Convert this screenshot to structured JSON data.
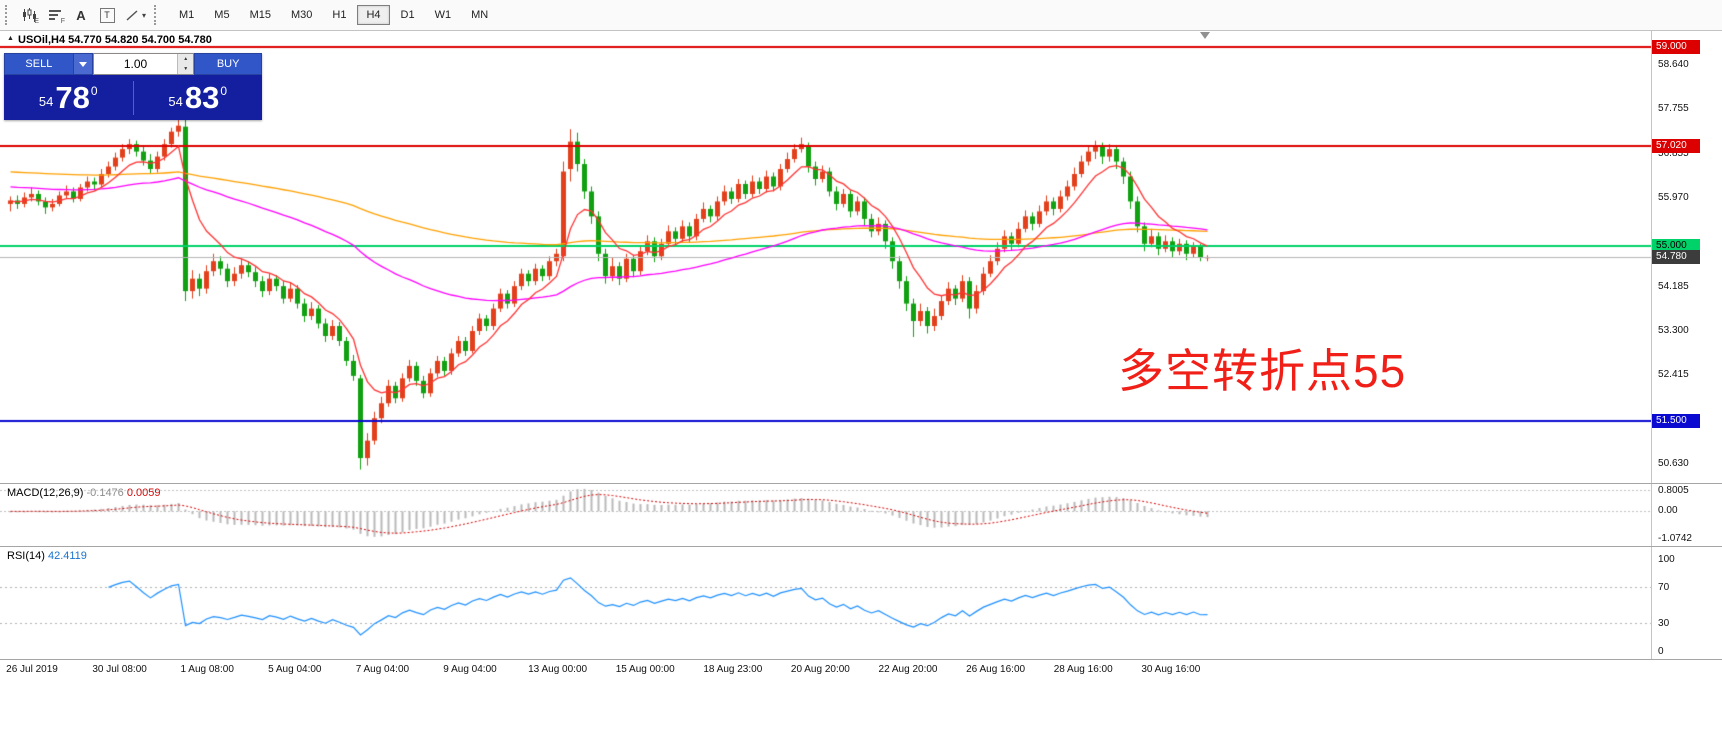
{
  "toolbar": {
    "tool_icons": [
      {
        "name": "chart-window-icon",
        "sub": "E"
      },
      {
        "name": "profiles-icon",
        "sub": "F"
      },
      {
        "name": "text-tool-icon",
        "glyph": "A"
      },
      {
        "name": "text-label-tool-icon",
        "glyph": "T"
      },
      {
        "name": "line-tools-icon"
      }
    ],
    "timeframes": [
      "M1",
      "M5",
      "M15",
      "M30",
      "H1",
      "H4",
      "D1",
      "W1",
      "MN"
    ],
    "active_timeframe": "H4"
  },
  "chart": {
    "title": "USOil,H4 54.770 54.820 54.700 54.780",
    "annotation": "多空转折点55"
  },
  "trade_panel": {
    "sell_label": "SELL",
    "buy_label": "BUY",
    "volume": "1.00",
    "sell_price": {
      "prefix": "54",
      "main": "78",
      "sup": "0"
    },
    "buy_price": {
      "prefix": "54",
      "main": "83",
      "sup": "0"
    }
  },
  "chart_data": {
    "type": "candlestick",
    "symbol": "USOil",
    "timeframe": "H4",
    "y_range": [
      50.25,
      59.32
    ],
    "candle_colors": {
      "up": "#e2401c",
      "down": "#11a011"
    },
    "levels": [
      {
        "price": 59.0,
        "label": "59.000",
        "color": "#dd0000",
        "text": "#ffffff",
        "width": 2
      },
      {
        "price": 57.02,
        "label": "57.020",
        "color": "#dd0000",
        "text": "#ffffff",
        "width": 2
      },
      {
        "price": 55.0,
        "label": "55.000",
        "color": "#00d26a",
        "text": "#000000",
        "width": 2
      },
      {
        "price": 51.5,
        "label": "51.500",
        "color": "#0a0ad0",
        "text": "#ffffff",
        "width": 2
      }
    ],
    "current_price": {
      "price": 54.78,
      "label": "54.780",
      "line_color": "#b4b4b4",
      "badge_bg": "#3c3c3c"
    },
    "axis_ticks": [
      {
        "value": 58.64,
        "label": "58.640"
      },
      {
        "value": 57.755,
        "label": "57.755"
      },
      {
        "value": 56.855,
        "label": "56.855"
      },
      {
        "value": 55.97,
        "label": "55.970"
      },
      {
        "value": 54.185,
        "label": "54.185"
      },
      {
        "value": 53.3,
        "label": "53.300"
      },
      {
        "value": 52.415,
        "label": "52.415"
      },
      {
        "value": 50.63,
        "label": "50.630"
      }
    ],
    "time_labels": [
      "26 Jul 2019",
      "30 Jul 08:00",
      "1 Aug 08:00",
      "5 Aug 04:00",
      "7 Aug 04:00",
      "9 Aug 04:00",
      "13 Aug 00:00",
      "15 Aug 00:00",
      "18 Aug 23:00",
      "20 Aug 20:00",
      "22 Aug 20:00",
      "26 Aug 16:00",
      "28 Aug 16:00",
      "30 Aug 16:00"
    ],
    "moving_averages": [
      {
        "name": "ma-slow",
        "color": "#ffa000",
        "alpha": 0.012,
        "seed": 56.5
      },
      {
        "name": "ma-mid",
        "color": "#ff00ff",
        "alpha": 0.03,
        "seed": 56.2
      },
      {
        "name": "ma-fast",
        "color": "#ff3333",
        "alpha": 0.22,
        "seed": 55.9
      }
    ],
    "indicators": {
      "macd": {
        "name": "MACD(12,26,9)",
        "value_main": "-0.1476",
        "value_signal": "0.0059",
        "axis_max": "0.8005",
        "axis_zero": "0.00",
        "axis_min": "-1.0742",
        "fast": 12,
        "slow": 26,
        "signal": 9,
        "histogram_color": "#b9b9b9",
        "signal_color": "#d40000"
      },
      "rsi": {
        "name": "RSI(14)",
        "value": "42.4119",
        "axis": [
          "100",
          "70",
          "30",
          "0"
        ],
        "period": 14,
        "levels": [
          70,
          30
        ],
        "line_color": "#1e90ff"
      }
    },
    "ohlc": [
      [
        55.85,
        56.0,
        55.7,
        55.92
      ],
      [
        55.92,
        56.02,
        55.75,
        55.85
      ],
      [
        55.85,
        56.08,
        55.78,
        55.98
      ],
      [
        55.98,
        56.18,
        55.9,
        56.05
      ],
      [
        56.05,
        56.12,
        55.82,
        55.9
      ],
      [
        55.9,
        55.98,
        55.65,
        55.78
      ],
      [
        55.78,
        55.95,
        55.7,
        55.85
      ],
      [
        55.85,
        56.1,
        55.8,
        56.02
      ],
      [
        56.02,
        56.22,
        55.95,
        56.1
      ],
      [
        56.1,
        56.18,
        55.88,
        55.95
      ],
      [
        55.95,
        56.25,
        55.9,
        56.18
      ],
      [
        56.18,
        56.4,
        56.1,
        56.3
      ],
      [
        56.3,
        56.38,
        56.12,
        56.24
      ],
      [
        56.24,
        56.55,
        56.18,
        56.45
      ],
      [
        56.45,
        56.7,
        56.38,
        56.6
      ],
      [
        56.6,
        56.88,
        56.52,
        56.78
      ],
      [
        56.78,
        57.05,
        56.7,
        56.95
      ],
      [
        56.95,
        57.15,
        56.85,
        57.05
      ],
      [
        57.05,
        57.12,
        56.8,
        56.9
      ],
      [
        56.9,
        57.0,
        56.62,
        56.72
      ],
      [
        56.72,
        56.85,
        56.45,
        56.55
      ],
      [
        56.55,
        56.9,
        56.48,
        56.8
      ],
      [
        56.8,
        57.15,
        56.72,
        57.05
      ],
      [
        57.05,
        57.38,
        56.98,
        57.3
      ],
      [
        57.3,
        57.55,
        57.2,
        57.42
      ],
      [
        57.4,
        57.58,
        53.9,
        54.1
      ],
      [
        54.1,
        54.52,
        53.95,
        54.35
      ],
      [
        54.35,
        54.45,
        54.0,
        54.15
      ],
      [
        54.15,
        54.62,
        54.05,
        54.5
      ],
      [
        54.5,
        54.85,
        54.4,
        54.7
      ],
      [
        54.7,
        54.8,
        54.42,
        54.55
      ],
      [
        54.55,
        54.65,
        54.18,
        54.3
      ],
      [
        54.3,
        54.58,
        54.2,
        54.45
      ],
      [
        54.45,
        54.75,
        54.35,
        54.62
      ],
      [
        54.62,
        54.7,
        54.38,
        54.48
      ],
      [
        54.48,
        54.58,
        54.18,
        54.3
      ],
      [
        54.3,
        54.4,
        53.98,
        54.1
      ],
      [
        54.1,
        54.45,
        54.02,
        54.35
      ],
      [
        54.35,
        54.42,
        54.1,
        54.2
      ],
      [
        54.2,
        54.3,
        53.85,
        53.95
      ],
      [
        53.95,
        54.28,
        53.88,
        54.15
      ],
      [
        54.15,
        54.22,
        53.75,
        53.85
      ],
      [
        53.85,
        53.95,
        53.48,
        53.6
      ],
      [
        53.6,
        53.88,
        53.52,
        53.75
      ],
      [
        53.75,
        53.82,
        53.35,
        53.45
      ],
      [
        53.45,
        53.55,
        53.08,
        53.2
      ],
      [
        53.2,
        53.52,
        53.12,
        53.4
      ],
      [
        53.4,
        53.48,
        53.0,
        53.1
      ],
      [
        53.1,
        53.18,
        52.6,
        52.7
      ],
      [
        52.7,
        52.82,
        52.3,
        52.4
      ],
      [
        52.35,
        52.42,
        50.52,
        50.75
      ],
      [
        50.75,
        51.25,
        50.6,
        51.1
      ],
      [
        51.1,
        51.68,
        51.02,
        51.55
      ],
      [
        51.55,
        51.98,
        51.45,
        51.85
      ],
      [
        51.85,
        52.32,
        51.78,
        52.2
      ],
      [
        52.2,
        52.28,
        51.85,
        51.95
      ],
      [
        51.95,
        52.45,
        51.88,
        52.35
      ],
      [
        52.35,
        52.72,
        52.28,
        52.6
      ],
      [
        52.6,
        52.68,
        52.2,
        52.3
      ],
      [
        52.3,
        52.4,
        51.95,
        52.05
      ],
      [
        52.05,
        52.55,
        51.98,
        52.45
      ],
      [
        52.45,
        52.8,
        52.38,
        52.7
      ],
      [
        52.7,
        52.78,
        52.4,
        52.5
      ],
      [
        52.5,
        52.95,
        52.42,
        52.85
      ],
      [
        52.85,
        53.2,
        52.78,
        53.1
      ],
      [
        53.1,
        53.18,
        52.8,
        52.9
      ],
      [
        52.9,
        53.4,
        52.85,
        53.3
      ],
      [
        53.3,
        53.65,
        53.22,
        53.55
      ],
      [
        53.55,
        53.62,
        53.3,
        53.4
      ],
      [
        53.4,
        53.85,
        53.32,
        53.75
      ],
      [
        53.75,
        54.15,
        53.68,
        54.05
      ],
      [
        54.05,
        54.12,
        53.75,
        53.85
      ],
      [
        53.85,
        54.3,
        53.78,
        54.2
      ],
      [
        54.2,
        54.55,
        54.12,
        54.45
      ],
      [
        54.45,
        54.52,
        54.2,
        54.3
      ],
      [
        54.3,
        54.65,
        54.22,
        54.55
      ],
      [
        54.55,
        54.62,
        54.3,
        54.4
      ],
      [
        54.4,
        54.8,
        54.32,
        54.7
      ],
      [
        54.7,
        54.95,
        54.6,
        54.85
      ],
      [
        54.8,
        56.7,
        54.7,
        56.5
      ],
      [
        56.55,
        57.35,
        56.3,
        57.1
      ],
      [
        57.1,
        57.28,
        56.5,
        56.65
      ],
      [
        56.65,
        56.75,
        55.95,
        56.1
      ],
      [
        56.1,
        56.2,
        55.45,
        55.6
      ],
      [
        55.6,
        55.7,
        54.7,
        54.85
      ],
      [
        54.85,
        54.95,
        54.25,
        54.4
      ],
      [
        54.4,
        54.78,
        54.3,
        54.6
      ],
      [
        54.6,
        54.68,
        54.22,
        54.35
      ],
      [
        54.35,
        54.85,
        54.28,
        54.75
      ],
      [
        54.75,
        54.82,
        54.38,
        54.5
      ],
      [
        54.5,
        55.0,
        54.42,
        54.9
      ],
      [
        54.9,
        55.22,
        54.82,
        55.1
      ],
      [
        55.1,
        55.18,
        54.68,
        54.8
      ],
      [
        54.8,
        55.15,
        54.72,
        55.05
      ],
      [
        55.05,
        55.42,
        54.98,
        55.3
      ],
      [
        55.3,
        55.38,
        55.02,
        55.15
      ],
      [
        55.15,
        55.52,
        55.08,
        55.4
      ],
      [
        55.4,
        55.48,
        55.08,
        55.2
      ],
      [
        55.2,
        55.65,
        55.12,
        55.55
      ],
      [
        55.55,
        55.88,
        55.48,
        55.75
      ],
      [
        55.75,
        55.82,
        55.48,
        55.6
      ],
      [
        55.6,
        56.0,
        55.52,
        55.9
      ],
      [
        55.9,
        56.22,
        55.82,
        56.1
      ],
      [
        56.1,
        56.18,
        55.85,
        55.95
      ],
      [
        55.95,
        56.35,
        55.88,
        56.25
      ],
      [
        56.25,
        56.32,
        55.95,
        56.05
      ],
      [
        56.05,
        56.42,
        55.98,
        56.3
      ],
      [
        56.3,
        56.38,
        56.05,
        56.15
      ],
      [
        56.15,
        56.52,
        56.08,
        56.4
      ],
      [
        56.4,
        56.48,
        56.1,
        56.2
      ],
      [
        56.2,
        56.65,
        56.12,
        56.55
      ],
      [
        56.55,
        56.88,
        56.48,
        56.75
      ],
      [
        56.75,
        57.05,
        56.68,
        56.95
      ],
      [
        56.95,
        57.18,
        56.88,
        57.05
      ],
      [
        57.0,
        57.08,
        56.48,
        56.6
      ],
      [
        56.6,
        56.7,
        56.22,
        56.35
      ],
      [
        56.35,
        56.62,
        56.28,
        56.5
      ],
      [
        56.5,
        56.58,
        56.0,
        56.1
      ],
      [
        56.1,
        56.2,
        55.72,
        55.85
      ],
      [
        55.85,
        56.15,
        55.78,
        56.05
      ],
      [
        56.05,
        56.12,
        55.58,
        55.7
      ],
      [
        55.7,
        56.0,
        55.62,
        55.9
      ],
      [
        55.9,
        55.98,
        55.42,
        55.55
      ],
      [
        55.55,
        55.65,
        55.18,
        55.3
      ],
      [
        55.3,
        55.58,
        55.22,
        55.45
      ],
      [
        55.45,
        55.52,
        54.95,
        55.1
      ],
      [
        55.1,
        55.18,
        54.55,
        54.7
      ],
      [
        54.7,
        54.8,
        54.15,
        54.3
      ],
      [
        54.3,
        54.4,
        53.7,
        53.85
      ],
      [
        53.85,
        53.95,
        53.18,
        53.5
      ],
      [
        53.5,
        53.85,
        53.4,
        53.7
      ],
      [
        53.7,
        53.78,
        53.25,
        53.4
      ],
      [
        53.4,
        53.75,
        53.3,
        53.6
      ],
      [
        53.6,
        54.02,
        53.52,
        53.9
      ],
      [
        53.9,
        54.28,
        53.82,
        54.15
      ],
      [
        54.15,
        54.22,
        53.82,
        53.95
      ],
      [
        53.95,
        54.42,
        53.88,
        54.3
      ],
      [
        54.3,
        54.38,
        53.55,
        53.75
      ],
      [
        53.75,
        54.22,
        53.65,
        54.1
      ],
      [
        54.1,
        54.58,
        54.02,
        54.45
      ],
      [
        54.45,
        54.82,
        54.38,
        54.7
      ],
      [
        54.7,
        55.08,
        54.62,
        54.95
      ],
      [
        54.95,
        55.32,
        54.88,
        55.2
      ],
      [
        55.2,
        55.28,
        54.92,
        55.05
      ],
      [
        55.05,
        55.48,
        54.98,
        55.35
      ],
      [
        55.35,
        55.72,
        55.28,
        55.6
      ],
      [
        55.6,
        55.68,
        55.32,
        55.45
      ],
      [
        55.45,
        55.82,
        55.38,
        55.7
      ],
      [
        55.7,
        56.02,
        55.62,
        55.9
      ],
      [
        55.9,
        55.98,
        55.62,
        55.75
      ],
      [
        55.75,
        56.12,
        55.68,
        56.0
      ],
      [
        56.0,
        56.32,
        55.92,
        56.2
      ],
      [
        56.2,
        56.58,
        56.12,
        56.45
      ],
      [
        56.45,
        56.82,
        56.38,
        56.7
      ],
      [
        56.7,
        57.0,
        56.62,
        56.9
      ],
      [
        56.9,
        57.12,
        56.75,
        57.0
      ],
      [
        57.0,
        57.08,
        56.65,
        56.8
      ],
      [
        56.8,
        57.05,
        56.7,
        56.95
      ],
      [
        56.95,
        57.02,
        56.55,
        56.7
      ],
      [
        56.7,
        56.78,
        56.25,
        56.4
      ],
      [
        56.4,
        56.5,
        55.75,
        55.9
      ],
      [
        55.9,
        56.0,
        55.28,
        55.4
      ],
      [
        55.4,
        55.48,
        54.9,
        55.05
      ],
      [
        55.05,
        55.35,
        54.98,
        55.2
      ],
      [
        55.2,
        55.28,
        54.82,
        54.95
      ],
      [
        54.95,
        55.22,
        54.88,
        55.1
      ],
      [
        55.1,
        55.18,
        54.78,
        54.9
      ],
      [
        54.9,
        55.15,
        54.82,
        55.05
      ],
      [
        55.05,
        55.12,
        54.72,
        54.85
      ],
      [
        54.85,
        55.08,
        54.78,
        55.0
      ],
      [
        55.0,
        55.05,
        54.7,
        54.77
      ],
      [
        54.77,
        54.82,
        54.7,
        54.78
      ]
    ]
  }
}
